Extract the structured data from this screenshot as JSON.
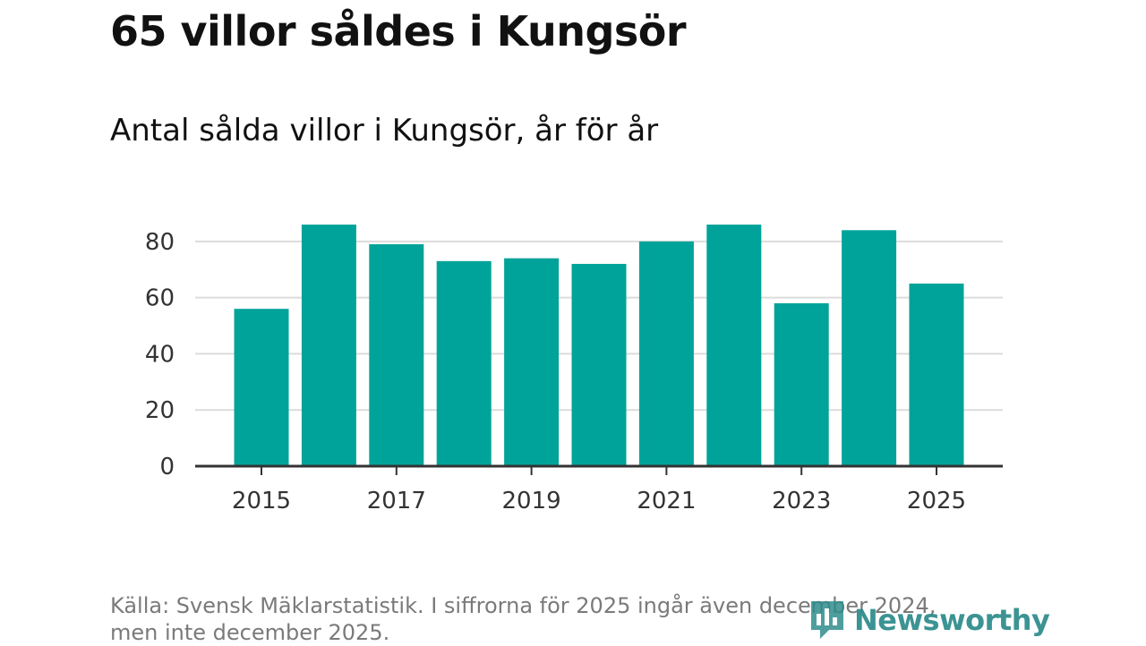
{
  "title": "65 villor såldes i Kungsör",
  "subtitle": "Antal sålda villor i Kungsör, år för år",
  "source": "Källa: Svensk Mäklarstatistik. I siffrorna för 2025 ingår även december 2024, men inte december 2025.",
  "brand": {
    "name": "Newsworthy",
    "color": "#2e8b8b",
    "icon": "newsworthy-logo-icon"
  },
  "colors": {
    "bar": "#00a39a",
    "grid": "#dcdcdc",
    "axis": "#333333"
  },
  "chart_data": {
    "type": "bar",
    "categories": [
      "2015",
      "2016",
      "2017",
      "2018",
      "2019",
      "2020",
      "2021",
      "2022",
      "2023",
      "2024",
      "2025"
    ],
    "values": [
      56,
      86,
      79,
      73,
      74,
      72,
      80,
      86,
      58,
      84,
      65
    ],
    "x_tick_labels": [
      "2015",
      "2017",
      "2019",
      "2021",
      "2023",
      "2025"
    ],
    "y_ticks": [
      0,
      20,
      40,
      60,
      80
    ],
    "ylim": [
      0,
      86
    ],
    "grid": true,
    "legend": "none"
  }
}
